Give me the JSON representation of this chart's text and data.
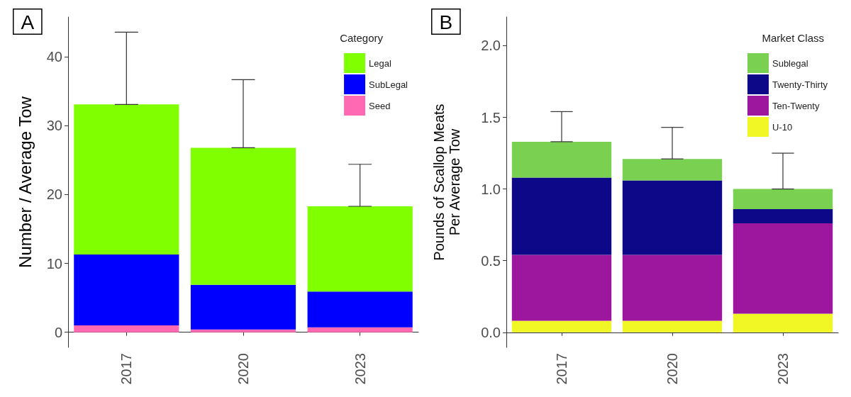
{
  "chart_data": [
    {
      "type": "bar",
      "stacked": true,
      "ylabel": "Number / Average Tow",
      "legend_title": "Category",
      "legend": "top right",
      "grid": false,
      "annotations": [
        "A"
      ],
      "categories": [
        "2017",
        "2020",
        "2023"
      ],
      "ylim": [
        -2.2,
        45.8
      ],
      "yticks": [
        0,
        10,
        20,
        30,
        40
      ],
      "series": [
        {
          "name": "Seed",
          "color": "#ff69b4",
          "values": [
            1.0,
            0.4,
            0.7
          ]
        },
        {
          "name": "SubLegal",
          "color": "#0000ff",
          "values": [
            10.3,
            6.5,
            5.2
          ]
        },
        {
          "name": "Legal",
          "color": "#7fff00",
          "values": [
            21.8,
            19.9,
            12.4
          ],
          "errors": [
            [
              33.1,
              43.6
            ],
            [
              26.8,
              36.7
            ],
            [
              18.3,
              24.4
            ]
          ]
        }
      ]
    },
    {
      "type": "bar",
      "stacked": true,
      "ylabel": "Pounds of Scallop Meats\nPer Average Tow",
      "legend_title": "Market Class",
      "legend": "top right",
      "grid": false,
      "annotations": [
        "B"
      ],
      "categories": [
        "2017",
        "2020",
        "2023"
      ],
      "ylim": [
        -0.105,
        2.2
      ],
      "yticks": [
        {
          "value": 0,
          "label": "0.0"
        },
        {
          "value": 0.5,
          "label": "0.5"
        },
        {
          "value": 1,
          "label": "1.0"
        },
        {
          "value": 1.5,
          "label": "1.5"
        },
        {
          "value": 2,
          "label": "2.0"
        }
      ],
      "series": [
        {
          "name": "U-10",
          "color": "#f0f724",
          "values": [
            0.08,
            0.08,
            0.13
          ]
        },
        {
          "name": "Ten-Twenty",
          "color": "#9c179e",
          "values": [
            0.46,
            0.46,
            0.63
          ]
        },
        {
          "name": "Twenty-Thirty",
          "color": "#0d0887",
          "values": [
            0.54,
            0.52,
            0.1
          ]
        },
        {
          "name": "Sublegal",
          "color": "#7ad151",
          "values": [
            0.25,
            0.15,
            0.14
          ],
          "errors": [
            [
              1.33,
              1.54
            ],
            [
              1.21,
              1.43
            ],
            [
              1.0,
              1.25
            ]
          ]
        }
      ]
    }
  ]
}
